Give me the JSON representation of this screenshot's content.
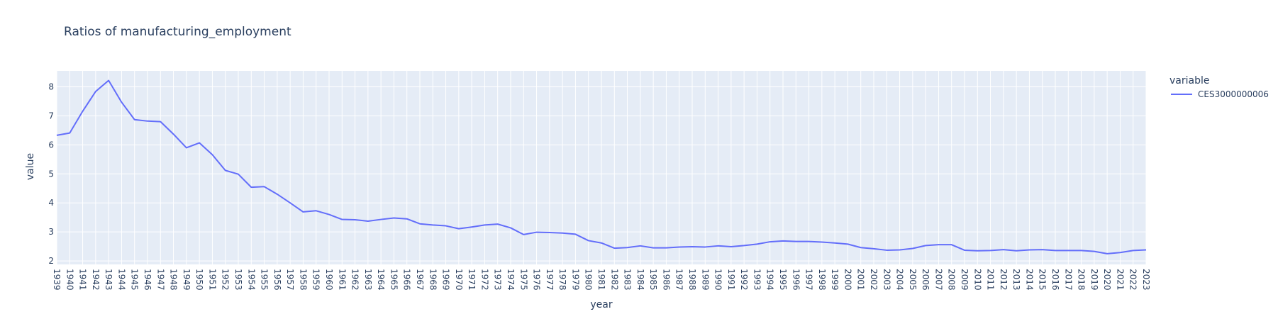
{
  "chart_data": {
    "type": "line",
    "title": "Ratios of manufacturing_employment",
    "xlabel": "year",
    "ylabel": "value",
    "legend_title": "variable",
    "legend_placement": "right",
    "grid": true,
    "colors": {
      "plot_bg": "#e5ecf6",
      "grid": "#ffffff",
      "line": "#636efa",
      "text": "#2a3f5f"
    },
    "xlim": [
      1939,
      2023
    ],
    "ylim": [
      1.88,
      8.55
    ],
    "yticks": [
      2,
      3,
      4,
      5,
      6,
      7,
      8
    ],
    "series": [
      {
        "name": "CES3000000006",
        "x": [
          1939,
          1940,
          1941,
          1942,
          1943,
          1944,
          1945,
          1946,
          1947,
          1948,
          1949,
          1950,
          1951,
          1952,
          1953,
          1954,
          1955,
          1956,
          1957,
          1958,
          1959,
          1960,
          1961,
          1962,
          1963,
          1964,
          1965,
          1966,
          1967,
          1968,
          1969,
          1970,
          1971,
          1972,
          1973,
          1974,
          1975,
          1976,
          1977,
          1978,
          1979,
          1980,
          1981,
          1982,
          1983,
          1984,
          1985,
          1986,
          1987,
          1988,
          1989,
          1990,
          1991,
          1992,
          1993,
          1994,
          1995,
          1996,
          1997,
          1998,
          1999,
          2000,
          2001,
          2002,
          2003,
          2004,
          2005,
          2006,
          2007,
          2008,
          2009,
          2010,
          2011,
          2012,
          2013,
          2014,
          2015,
          2016,
          2017,
          2018,
          2019,
          2020,
          2021,
          2022,
          2023
        ],
        "values": [
          6.33,
          6.41,
          7.16,
          7.84,
          8.22,
          7.47,
          6.87,
          6.82,
          6.8,
          6.37,
          5.9,
          6.07,
          5.66,
          5.12,
          4.99,
          4.54,
          4.56,
          4.3,
          4.0,
          3.69,
          3.73,
          3.6,
          3.43,
          3.42,
          3.37,
          3.43,
          3.48,
          3.45,
          3.28,
          3.24,
          3.21,
          3.11,
          3.17,
          3.24,
          3.27,
          3.14,
          2.91,
          2.99,
          2.98,
          2.96,
          2.92,
          2.7,
          2.62,
          2.44,
          2.46,
          2.52,
          2.45,
          2.45,
          2.48,
          2.49,
          2.48,
          2.52,
          2.49,
          2.53,
          2.58,
          2.66,
          2.69,
          2.67,
          2.67,
          2.65,
          2.62,
          2.58,
          2.46,
          2.42,
          2.37,
          2.38,
          2.43,
          2.53,
          2.56,
          2.56,
          2.37,
          2.35,
          2.36,
          2.39,
          2.35,
          2.38,
          2.39,
          2.36,
          2.36,
          2.36,
          2.33,
          2.25,
          2.29,
          2.36,
          2.38
        ]
      }
    ]
  }
}
